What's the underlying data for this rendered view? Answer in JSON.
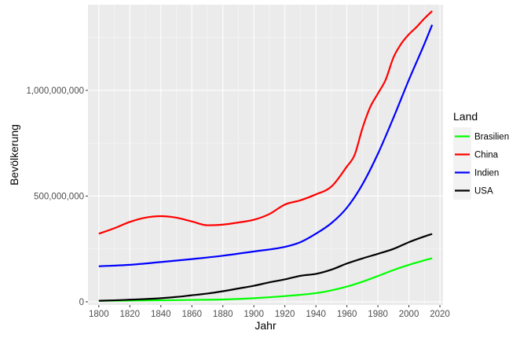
{
  "chart_data": {
    "type": "line",
    "xlabel": "Jahr",
    "ylabel": "Bevölkerung",
    "xlim": [
      1793,
      2022
    ],
    "ylim": [
      -15000000,
      1405000000
    ],
    "x_ticks": [
      1800,
      1820,
      1840,
      1860,
      1880,
      1900,
      1920,
      1940,
      1960,
      1980,
      2000,
      2020
    ],
    "y_ticks": [
      0,
      500000000,
      1000000000
    ],
    "y_tick_labels": [
      "0",
      "500,000,000",
      "1,000,000,000"
    ],
    "grid": true,
    "panel_background": "#ebebeb",
    "legend": {
      "title": "Land",
      "placement": "right",
      "entries": [
        "Brasilien",
        "China",
        "Indien",
        "USA"
      ]
    },
    "series": [
      {
        "name": "Brasilien",
        "color": "#00ff00",
        "points": [
          [
            1800,
            5000000
          ],
          [
            1820,
            6000000
          ],
          [
            1840,
            7000000
          ],
          [
            1860,
            9000000
          ],
          [
            1880,
            11000000
          ],
          [
            1900,
            17000000
          ],
          [
            1920,
            27000000
          ],
          [
            1940,
            41000000
          ],
          [
            1950,
            54000000
          ],
          [
            1960,
            72000000
          ],
          [
            1970,
            95000000
          ],
          [
            1980,
            122000000
          ],
          [
            1990,
            150000000
          ],
          [
            2000,
            175000000
          ],
          [
            2010,
            196000000
          ],
          [
            2015,
            206000000
          ]
        ]
      },
      {
        "name": "China",
        "color": "#ff0000",
        "points": [
          [
            1800,
            322000000
          ],
          [
            1810,
            348000000
          ],
          [
            1820,
            378000000
          ],
          [
            1830,
            398000000
          ],
          [
            1840,
            405000000
          ],
          [
            1850,
            398000000
          ],
          [
            1860,
            380000000
          ],
          [
            1870,
            362000000
          ],
          [
            1880,
            365000000
          ],
          [
            1890,
            375000000
          ],
          [
            1900,
            388000000
          ],
          [
            1910,
            415000000
          ],
          [
            1920,
            460000000
          ],
          [
            1930,
            480000000
          ],
          [
            1940,
            508000000
          ],
          [
            1950,
            545000000
          ],
          [
            1960,
            640000000
          ],
          [
            1965,
            695000000
          ],
          [
            1970,
            820000000
          ],
          [
            1975,
            920000000
          ],
          [
            1980,
            985000000
          ],
          [
            1985,
            1050000000
          ],
          [
            1990,
            1155000000
          ],
          [
            1995,
            1220000000
          ],
          [
            2000,
            1265000000
          ],
          [
            2005,
            1300000000
          ],
          [
            2010,
            1340000000
          ],
          [
            2015,
            1375000000
          ]
        ]
      },
      {
        "name": "Indien",
        "color": "#0000ff",
        "points": [
          [
            1800,
            168000000
          ],
          [
            1820,
            175000000
          ],
          [
            1840,
            188000000
          ],
          [
            1860,
            202000000
          ],
          [
            1880,
            218000000
          ],
          [
            1900,
            238000000
          ],
          [
            1920,
            260000000
          ],
          [
            1930,
            282000000
          ],
          [
            1940,
            322000000
          ],
          [
            1950,
            372000000
          ],
          [
            1960,
            445000000
          ],
          [
            1970,
            555000000
          ],
          [
            1980,
            700000000
          ],
          [
            1990,
            870000000
          ],
          [
            2000,
            1050000000
          ],
          [
            2010,
            1220000000
          ],
          [
            2015,
            1310000000
          ]
        ]
      },
      {
        "name": "USA",
        "color": "#000000",
        "points": [
          [
            1800,
            5000000
          ],
          [
            1810,
            7000000
          ],
          [
            1820,
            10000000
          ],
          [
            1830,
            13000000
          ],
          [
            1840,
            17000000
          ],
          [
            1850,
            23000000
          ],
          [
            1860,
            31000000
          ],
          [
            1870,
            39000000
          ],
          [
            1880,
            50000000
          ],
          [
            1890,
            63000000
          ],
          [
            1900,
            76000000
          ],
          [
            1910,
            92000000
          ],
          [
            1920,
            106000000
          ],
          [
            1930,
            123000000
          ],
          [
            1940,
            132000000
          ],
          [
            1950,
            152000000
          ],
          [
            1960,
            181000000
          ],
          [
            1970,
            205000000
          ],
          [
            1980,
            227000000
          ],
          [
            1990,
            250000000
          ],
          [
            2000,
            282000000
          ],
          [
            2010,
            309000000
          ],
          [
            2015,
            321000000
          ]
        ]
      }
    ]
  }
}
